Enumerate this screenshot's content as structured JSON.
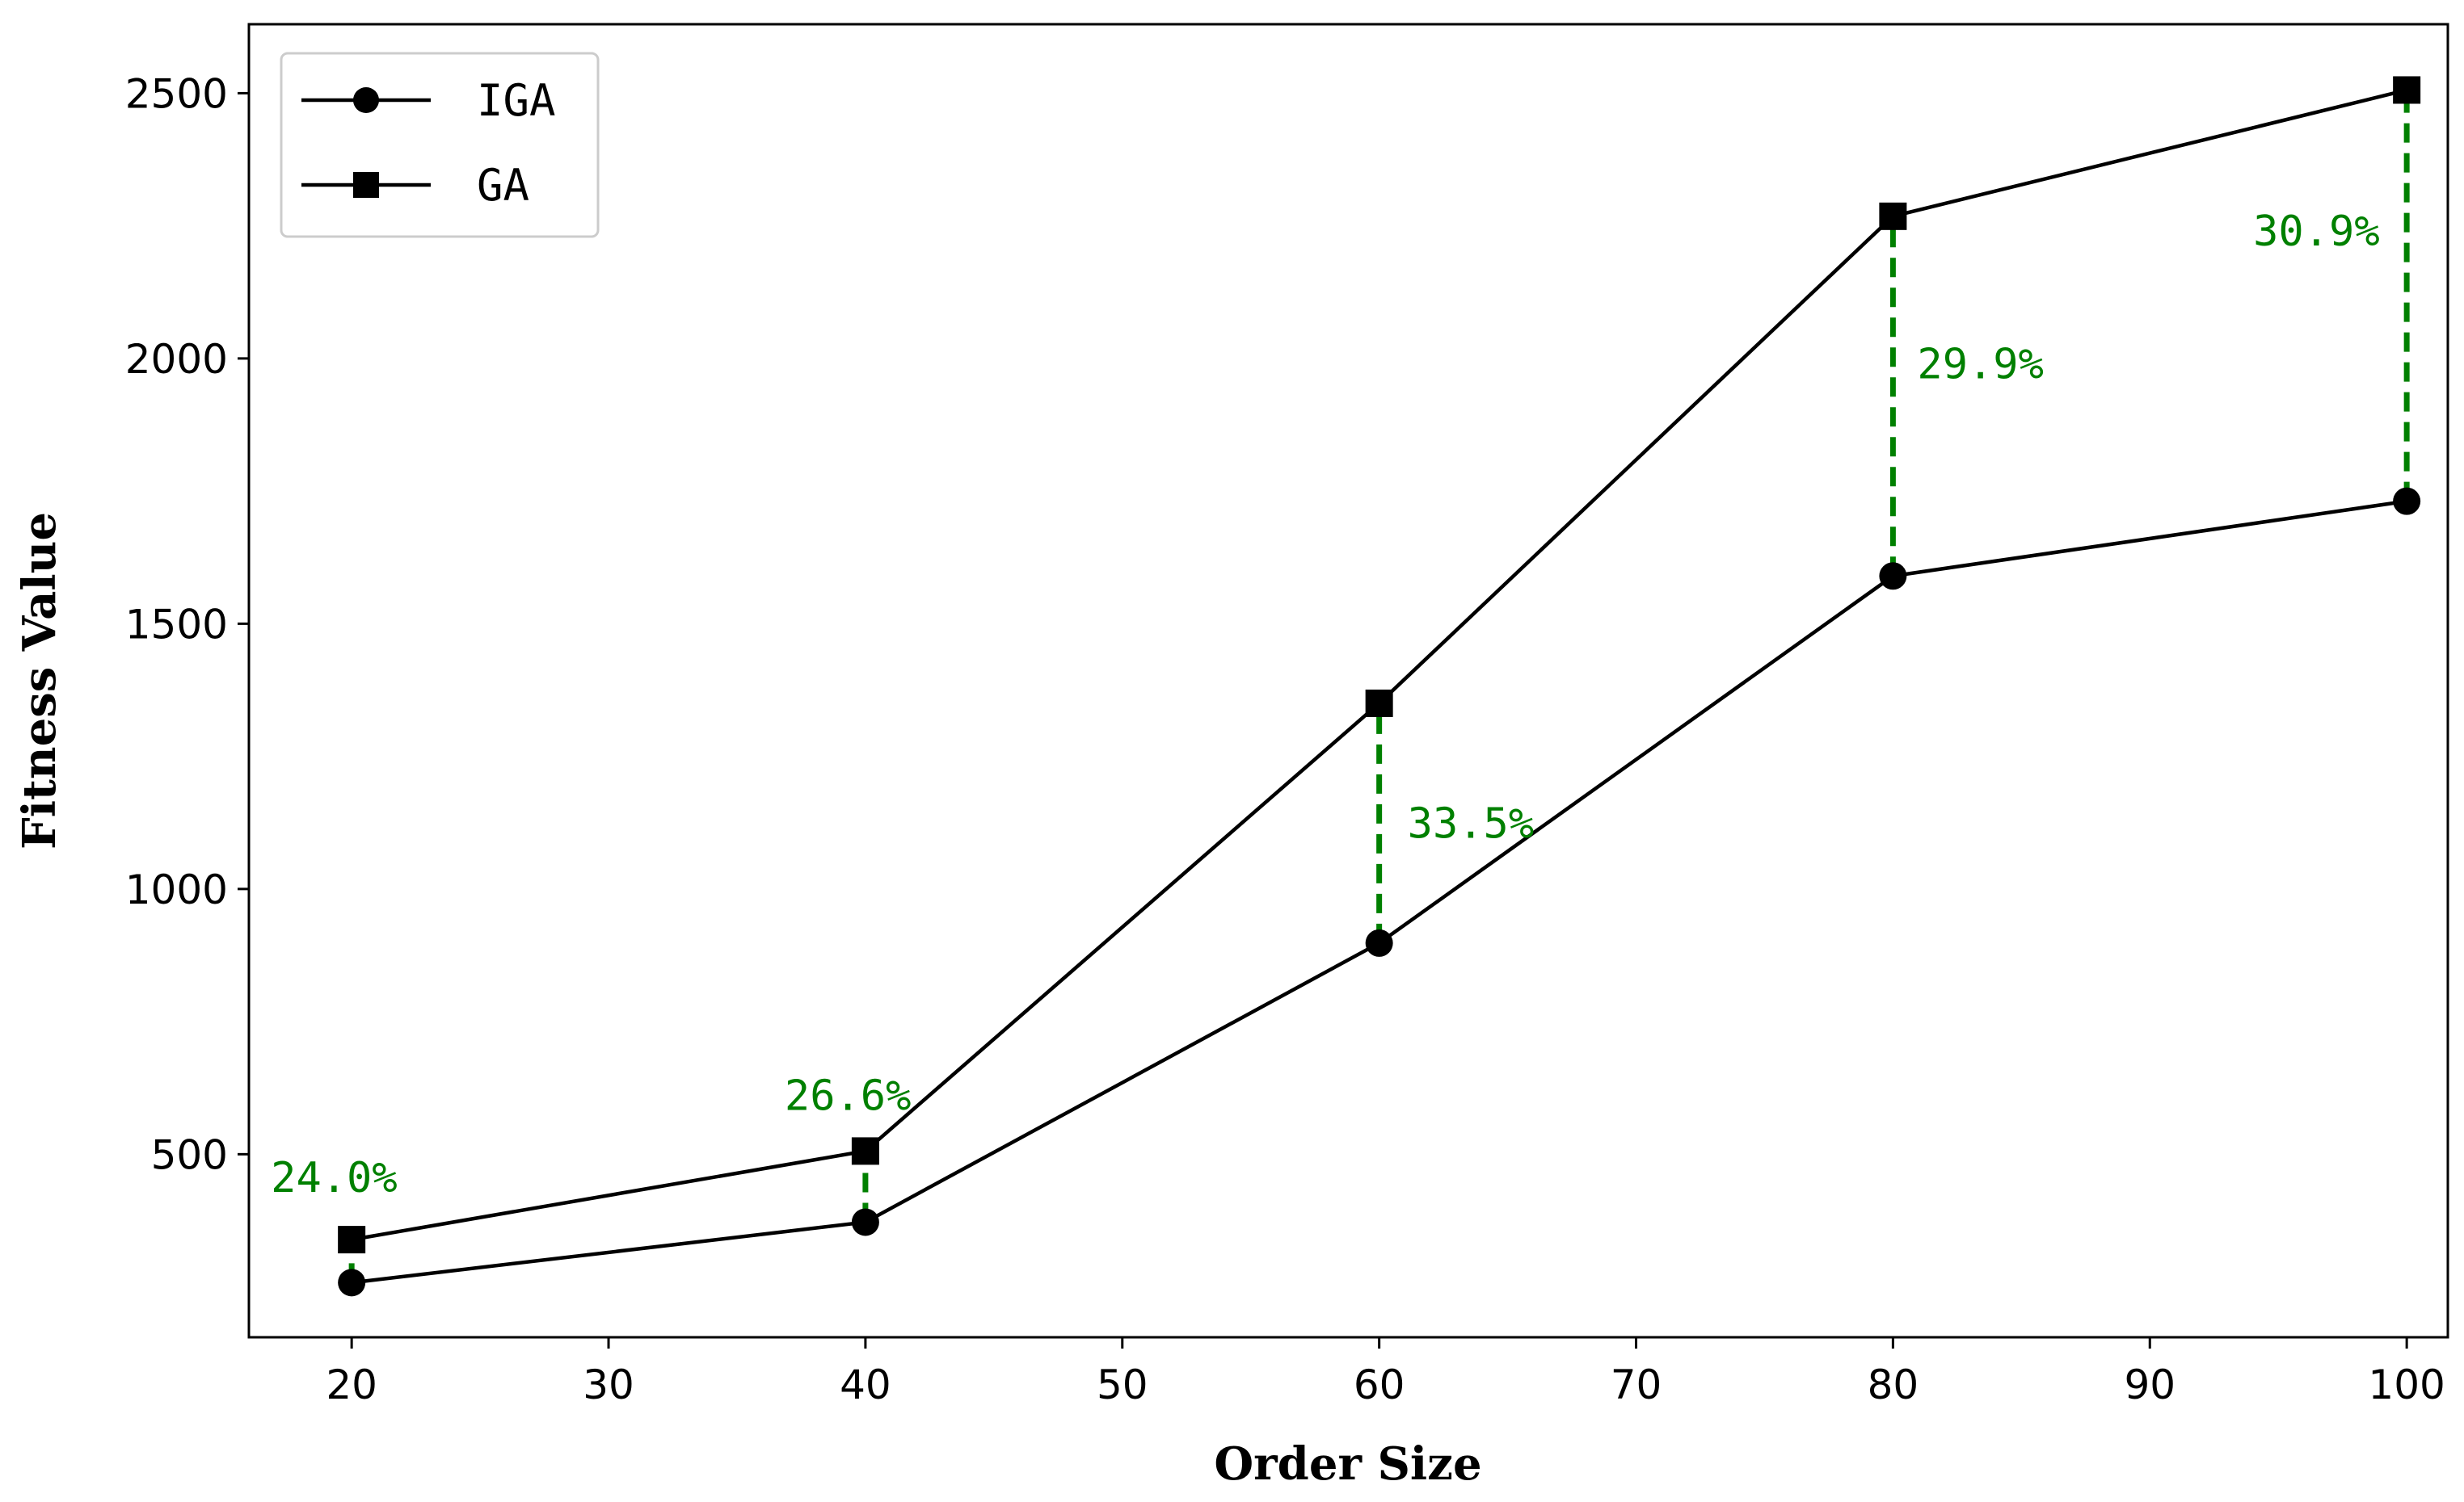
{
  "chart_data": {
    "type": "line",
    "title": "",
    "xlabel": "Order Size",
    "ylabel": "Fitness Value",
    "x": [
      20,
      40,
      60,
      80,
      100
    ],
    "x_ticks": [
      "20",
      "30",
      "40",
      "50",
      "60",
      "70",
      "80",
      "90",
      "100"
    ],
    "y_ticks": [
      "500",
      "1000",
      "1500",
      "2000",
      "2500"
    ],
    "xlim": [
      16,
      101.6
    ],
    "ylim": [
      155,
      2630
    ],
    "grid": false,
    "legend_position": "top-left",
    "series": [
      {
        "name": "IGA",
        "marker": "circle",
        "color": "#000000",
        "values": [
          258,
          372,
          898,
          1590,
          1731
        ]
      },
      {
        "name": "GA",
        "marker": "square",
        "color": "#000000",
        "values": [
          339,
          506,
          1350,
          2268,
          2506
        ]
      }
    ],
    "gap_color": "#008000",
    "annotations": [
      "24.0%",
      "26.6%",
      "33.5%",
      "29.9%",
      "30.9%"
    ]
  }
}
